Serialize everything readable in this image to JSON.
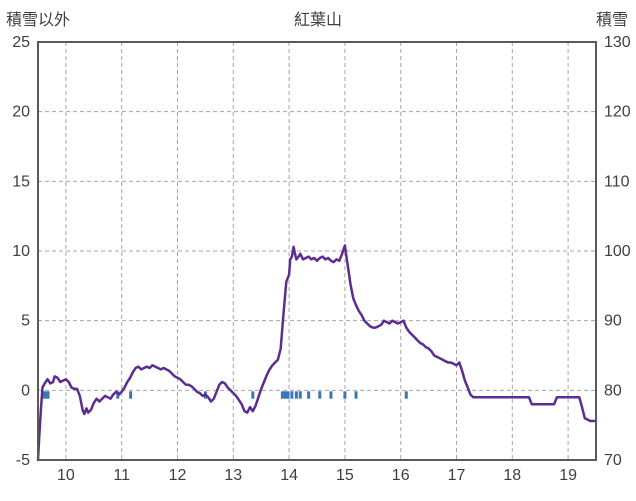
{
  "chart_data": {
    "type": "line",
    "title": "紅葉山",
    "left_axis_label": "積雪以外",
    "right_axis_label": "積雪",
    "x_range": [
      9.5,
      19.5
    ],
    "x_ticks": [
      10,
      11,
      12,
      13,
      14,
      15,
      16,
      17,
      18,
      19
    ],
    "left_y_range": [
      -5,
      25
    ],
    "left_y_ticks": [
      25,
      20,
      15,
      10,
      5,
      0,
      -5
    ],
    "right_y_range": [
      70,
      130
    ],
    "right_y_ticks": [
      130,
      120,
      110,
      100,
      90,
      80,
      70
    ],
    "grid": "dashed",
    "legend": "none",
    "line_color": "#5C2D91",
    "event_tick_color": "#3679B5",
    "frame_color": "#595959",
    "grid_color": "#A6A6A6",
    "text_color": "#3F3F3F",
    "line_points": [
      [
        9.5,
        -5.0
      ],
      [
        9.52,
        -3.5
      ],
      [
        9.55,
        -1.5
      ],
      [
        9.58,
        0.2
      ],
      [
        9.62,
        0.5
      ],
      [
        9.67,
        0.8
      ],
      [
        9.72,
        0.5
      ],
      [
        9.77,
        0.6
      ],
      [
        9.8,
        1.0
      ],
      [
        9.85,
        0.9
      ],
      [
        9.9,
        0.6
      ],
      [
        9.95,
        0.7
      ],
      [
        10.0,
        0.8
      ],
      [
        10.05,
        0.6
      ],
      [
        10.1,
        0.2
      ],
      [
        10.15,
        0.1
      ],
      [
        10.2,
        0.1
      ],
      [
        10.25,
        -0.4
      ],
      [
        10.3,
        -1.4
      ],
      [
        10.33,
        -1.7
      ],
      [
        10.37,
        -1.3
      ],
      [
        10.4,
        -1.6
      ],
      [
        10.45,
        -1.4
      ],
      [
        10.5,
        -0.9
      ],
      [
        10.55,
        -0.6
      ],
      [
        10.6,
        -0.8
      ],
      [
        10.65,
        -0.6
      ],
      [
        10.7,
        -0.4
      ],
      [
        10.75,
        -0.5
      ],
      [
        10.8,
        -0.6
      ],
      [
        10.85,
        -0.3
      ],
      [
        10.9,
        -0.1
      ],
      [
        10.95,
        -0.3
      ],
      [
        11.0,
        -0.1
      ],
      [
        11.05,
        0.2
      ],
      [
        11.1,
        0.6
      ],
      [
        11.15,
        0.9
      ],
      [
        11.2,
        1.3
      ],
      [
        11.25,
        1.6
      ],
      [
        11.3,
        1.7
      ],
      [
        11.35,
        1.5
      ],
      [
        11.4,
        1.6
      ],
      [
        11.45,
        1.7
      ],
      [
        11.5,
        1.6
      ],
      [
        11.55,
        1.8
      ],
      [
        11.6,
        1.7
      ],
      [
        11.65,
        1.6
      ],
      [
        11.7,
        1.5
      ],
      [
        11.75,
        1.6
      ],
      [
        11.8,
        1.5
      ],
      [
        11.85,
        1.4
      ],
      [
        11.9,
        1.2
      ],
      [
        11.95,
        1.0
      ],
      [
        12.0,
        0.9
      ],
      [
        12.05,
        0.8
      ],
      [
        12.1,
        0.6
      ],
      [
        12.15,
        0.4
      ],
      [
        12.2,
        0.4
      ],
      [
        12.25,
        0.3
      ],
      [
        12.3,
        0.1
      ],
      [
        12.35,
        -0.1
      ],
      [
        12.4,
        -0.2
      ],
      [
        12.45,
        -0.4
      ],
      [
        12.5,
        -0.3
      ],
      [
        12.55,
        -0.5
      ],
      [
        12.6,
        -0.8
      ],
      [
        12.65,
        -0.6
      ],
      [
        12.7,
        -0.1
      ],
      [
        12.75,
        0.4
      ],
      [
        12.8,
        0.6
      ],
      [
        12.85,
        0.5
      ],
      [
        12.9,
        0.2
      ],
      [
        12.95,
        0.0
      ],
      [
        13.0,
        -0.2
      ],
      [
        13.05,
        -0.4
      ],
      [
        13.1,
        -0.7
      ],
      [
        13.15,
        -1.0
      ],
      [
        13.2,
        -1.5
      ],
      [
        13.25,
        -1.6
      ],
      [
        13.3,
        -1.2
      ],
      [
        13.35,
        -1.5
      ],
      [
        13.4,
        -1.1
      ],
      [
        13.45,
        -0.5
      ],
      [
        13.5,
        0.1
      ],
      [
        13.55,
        0.6
      ],
      [
        13.6,
        1.1
      ],
      [
        13.65,
        1.5
      ],
      [
        13.7,
        1.8
      ],
      [
        13.75,
        2.0
      ],
      [
        13.8,
        2.2
      ],
      [
        13.85,
        3.0
      ],
      [
        13.9,
        5.5
      ],
      [
        13.95,
        7.8
      ],
      [
        14.0,
        8.3
      ],
      [
        14.02,
        9.4
      ],
      [
        14.05,
        9.6
      ],
      [
        14.08,
        10.3
      ],
      [
        14.1,
        9.9
      ],
      [
        14.13,
        9.4
      ],
      [
        14.17,
        9.6
      ],
      [
        14.2,
        9.8
      ],
      [
        14.25,
        9.4
      ],
      [
        14.3,
        9.5
      ],
      [
        14.35,
        9.6
      ],
      [
        14.4,
        9.4
      ],
      [
        14.45,
        9.5
      ],
      [
        14.5,
        9.3
      ],
      [
        14.55,
        9.5
      ],
      [
        14.6,
        9.6
      ],
      [
        14.65,
        9.4
      ],
      [
        14.7,
        9.5
      ],
      [
        14.75,
        9.3
      ],
      [
        14.8,
        9.2
      ],
      [
        14.85,
        9.4
      ],
      [
        14.9,
        9.3
      ],
      [
        14.95,
        9.8
      ],
      [
        15.0,
        10.4
      ],
      [
        15.02,
        9.8
      ],
      [
        15.05,
        9.0
      ],
      [
        15.1,
        7.6
      ],
      [
        15.15,
        6.6
      ],
      [
        15.2,
        6.1
      ],
      [
        15.25,
        5.7
      ],
      [
        15.3,
        5.4
      ],
      [
        15.35,
        5.0
      ],
      [
        15.4,
        4.8
      ],
      [
        15.45,
        4.6
      ],
      [
        15.5,
        4.5
      ],
      [
        15.55,
        4.5
      ],
      [
        15.6,
        4.6
      ],
      [
        15.65,
        4.7
      ],
      [
        15.7,
        5.0
      ],
      [
        15.75,
        4.9
      ],
      [
        15.8,
        4.8
      ],
      [
        15.85,
        5.0
      ],
      [
        15.9,
        4.9
      ],
      [
        15.95,
        4.8
      ],
      [
        16.0,
        4.9
      ],
      [
        16.05,
        5.0
      ],
      [
        16.1,
        4.5
      ],
      [
        16.15,
        4.2
      ],
      [
        16.2,
        4.0
      ],
      [
        16.25,
        3.8
      ],
      [
        16.3,
        3.6
      ],
      [
        16.35,
        3.4
      ],
      [
        16.4,
        3.3
      ],
      [
        16.45,
        3.1
      ],
      [
        16.5,
        3.0
      ],
      [
        16.55,
        2.8
      ],
      [
        16.6,
        2.5
      ],
      [
        16.65,
        2.4
      ],
      [
        16.7,
        2.3
      ],
      [
        16.75,
        2.2
      ],
      [
        16.8,
        2.1
      ],
      [
        16.85,
        2.0
      ],
      [
        16.9,
        2.0
      ],
      [
        16.95,
        1.9
      ],
      [
        17.0,
        1.8
      ],
      [
        17.05,
        2.0
      ],
      [
        17.1,
        1.4
      ],
      [
        17.15,
        0.7
      ],
      [
        17.2,
        0.2
      ],
      [
        17.25,
        -0.3
      ],
      [
        17.3,
        -0.5
      ],
      [
        17.5,
        -0.5
      ],
      [
        17.7,
        -0.5
      ],
      [
        17.9,
        -0.5
      ],
      [
        18.1,
        -0.5
      ],
      [
        18.3,
        -0.5
      ],
      [
        18.35,
        -1.0
      ],
      [
        18.5,
        -1.0
      ],
      [
        18.65,
        -1.0
      ],
      [
        18.75,
        -1.0
      ],
      [
        18.8,
        -0.5
      ],
      [
        18.9,
        -0.5
      ],
      [
        19.0,
        -0.5
      ],
      [
        19.1,
        -0.5
      ],
      [
        19.2,
        -0.5
      ],
      [
        19.25,
        -1.2
      ],
      [
        19.3,
        -2.0
      ],
      [
        19.35,
        -2.1
      ],
      [
        19.4,
        -2.2
      ],
      [
        19.45,
        -2.2
      ],
      [
        19.5,
        -2.2
      ]
    ],
    "event_tick_x": [
      9.58,
      9.63,
      9.68,
      10.93,
      11.16,
      12.5,
      13.35,
      13.88,
      13.93,
      13.98,
      14.05,
      14.13,
      14.2,
      14.35,
      14.55,
      14.75,
      15.0,
      15.2,
      16.1
    ],
    "event_tick_y_top": -0.07,
    "event_tick_y_bottom": -0.6
  }
}
